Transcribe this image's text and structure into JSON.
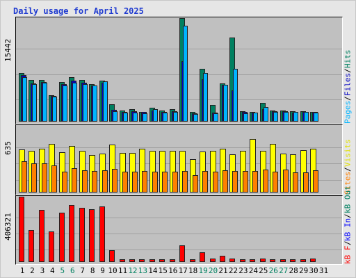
{
  "title": "Daily usage for April 2025",
  "panels": {
    "top": {
      "max_label": "15442",
      "right_label": [
        {
          "text": "Pages",
          "color": "#00b4ff"
        },
        {
          "text": " / ",
          "color": "#000000"
        },
        {
          "text": "Files",
          "color": "#0000c0"
        },
        {
          "text": " / ",
          "color": "#000000"
        },
        {
          "text": "Hits",
          "color": "#008060"
        }
      ]
    },
    "middle": {
      "max_label": "635",
      "right_label": [
        {
          "text": "Sites",
          "color": "#ff8000"
        },
        {
          "text": " / ",
          "color": "#000000"
        },
        {
          "text": "Visits",
          "color": "#e0e000"
        }
      ]
    },
    "bottom": {
      "max_label": "406321",
      "right_label": [
        {
          "text": "kB F",
          "color": "#ff0000"
        },
        {
          "text": " / ",
          "color": "#000000"
        },
        {
          "text": "kB In",
          "color": "#0000ff"
        },
        {
          "text": " / ",
          "color": "#000000"
        },
        {
          "text": "kB Out",
          "color": "#008060"
        }
      ]
    }
  },
  "chart_data": {
    "type": "bar",
    "categories": [
      "1",
      "2",
      "3",
      "4",
      "5",
      "6",
      "7",
      "8",
      "9",
      "10",
      "11",
      "12",
      "13",
      "14",
      "15",
      "16",
      "17",
      "18",
      "19",
      "20",
      "21",
      "22",
      "23",
      "24",
      "25",
      "26",
      "27",
      "28",
      "29",
      "30",
      "31"
    ],
    "weekend_days": [
      "5",
      "6",
      "12",
      "13",
      "19",
      "20",
      "26",
      "27"
    ],
    "colors": {
      "hits": "#008060",
      "files": "#0000c0",
      "pages": "#00b4ff",
      "visits": "#ffff00",
      "sites": "#ff8000",
      "kb": "#ff0000",
      "weekday_label": "#000000",
      "weekend_label": "#008060"
    },
    "top": {
      "ymax": 15442,
      "series": [
        {
          "name": "Hits",
          "values": [
            7250,
            6250,
            6250,
            3950,
            5900,
            6650,
            6250,
            5600,
            6150,
            2550,
            1650,
            1900,
            1500,
            2100,
            1650,
            1850,
            15442,
            1400,
            7900,
            2450,
            5650,
            12500,
            1550,
            1500,
            2800,
            1650,
            1650,
            1550,
            1600,
            1400,
            0
          ]
        },
        {
          "name": "Files",
          "values": [
            6900,
            5750,
            5900,
            3850,
            5550,
            6150,
            5850,
            5400,
            5800,
            1750,
            1450,
            1550,
            1400,
            1650,
            1500,
            1550,
            9000,
            1250,
            6300,
            1350,
            5500,
            4650,
            1400,
            1350,
            1900,
            1550,
            1550,
            1350,
            1450,
            1450,
            0
          ]
        },
        {
          "name": "Pages",
          "values": [
            6650,
            5550,
            5850,
            3750,
            5400,
            5800,
            5600,
            5350,
            6000,
            1600,
            1350,
            1300,
            1250,
            1850,
            1350,
            1400,
            14300,
            1150,
            7300,
            1250,
            5500,
            7900,
            1250,
            1350,
            2200,
            1500,
            1500,
            1450,
            1450,
            1350,
            0
          ]
        }
      ]
    },
    "middle": {
      "ymax": 635,
      "series": [
        {
          "name": "Visits",
          "values": [
            410,
            395,
            420,
            465,
            385,
            440,
            400,
            360,
            370,
            455,
            380,
            380,
            415,
            395,
            400,
            395,
            395,
            315,
            390,
            395,
            420,
            365,
            395,
            510,
            395,
            460,
            370,
            365,
            405,
            415,
            0
          ]
        },
        {
          "name": "Sites",
          "values": [
            295,
            280,
            280,
            255,
            200,
            230,
            210,
            205,
            210,
            225,
            200,
            200,
            205,
            200,
            200,
            200,
            205,
            165,
            205,
            200,
            210,
            205,
            205,
            205,
            215,
            200,
            215,
            195,
            195,
            210,
            0
          ]
        }
      ]
    },
    "bottom": {
      "ymax": 406321,
      "series": [
        {
          "name": "kB F",
          "values": [
            406321,
            200000,
            326000,
            189000,
            309000,
            355000,
            337000,
            330000,
            347000,
            71500,
            17000,
            17500,
            18800,
            15900,
            15700,
            16100,
            102500,
            15700,
            60000,
            19700,
            40000,
            22500,
            18000,
            17600,
            20700,
            18000,
            16500,
            17600,
            19000,
            23000,
            0
          ]
        }
      ]
    }
  }
}
